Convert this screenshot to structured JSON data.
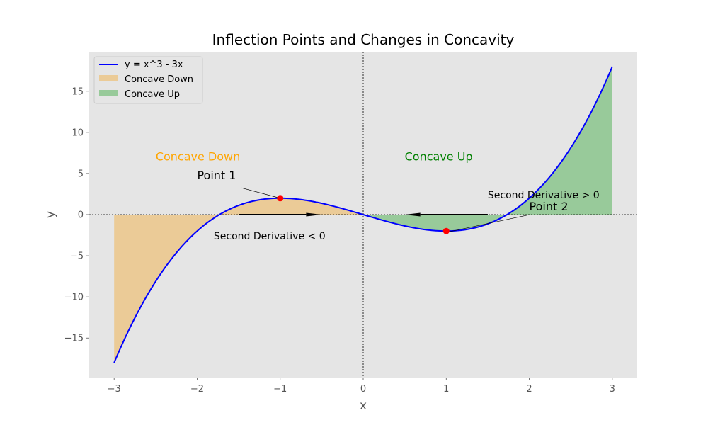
{
  "chart_data": {
    "type": "line",
    "title": "Inflection Points and Changes in Concavity",
    "xlabel": "x",
    "ylabel": "y",
    "xlim": [
      -3.3,
      3.3
    ],
    "ylim": [
      -19.8,
      19.8
    ],
    "xticks": [
      -3,
      -2,
      -1,
      0,
      1,
      2,
      3
    ],
    "xtick_labels": [
      "−3",
      "−2",
      "−1",
      "0",
      "1",
      "2",
      "3"
    ],
    "yticks": [
      -15,
      -10,
      -5,
      0,
      5,
      10,
      15
    ],
    "ytick_labels": [
      "−15",
      "−10",
      "−5",
      "0",
      "5",
      "10",
      "15"
    ],
    "grid": false,
    "legend_position": "top-left",
    "series": [
      {
        "name": "y = x^3 - 3x",
        "kind": "line",
        "color": "#0000ff",
        "x": [
          -3.0,
          -2.75,
          -2.5,
          -2.25,
          -2.0,
          -1.75,
          -1.5,
          -1.25,
          -1.0,
          -0.75,
          -0.5,
          -0.25,
          0.0,
          0.25,
          0.5,
          0.75,
          1.0,
          1.25,
          1.5,
          1.75,
          2.0,
          2.25,
          2.5,
          2.75,
          3.0
        ],
        "y": [
          -18.0,
          -12.55,
          -8.13,
          -4.64,
          -2.0,
          -0.11,
          1.13,
          1.8,
          2.0,
          1.83,
          1.38,
          0.73,
          0.0,
          -0.73,
          -1.38,
          -1.83,
          -2.0,
          -1.8,
          -1.13,
          0.11,
          2.0,
          4.64,
          8.13,
          12.55,
          18.0
        ]
      },
      {
        "name": "Concave Down",
        "kind": "fill",
        "color": "#f5a623",
        "x_range": [
          -3,
          0
        ]
      },
      {
        "name": "Concave Up",
        "kind": "fill",
        "color": "#4caf50",
        "x_range": [
          0,
          3
        ]
      }
    ],
    "inflection_points": [
      {
        "label": "Point 1",
        "x": -1,
        "y": 2,
        "label_x": -2.0,
        "label_y": 4.3
      },
      {
        "label": "Point 2",
        "x": 1,
        "y": -2,
        "label_x": 2.0,
        "label_y": 0.5
      }
    ],
    "region_labels": [
      {
        "text": "Concave Down",
        "x": -2.5,
        "y": 7,
        "color": "#ffa500"
      },
      {
        "text": "Concave Up",
        "x": 0.5,
        "y": 7,
        "color": "#008000"
      }
    ],
    "arrow_annotations": [
      {
        "text": "Second Derivative < 0",
        "text_x": -1.8,
        "text_y": -2.6,
        "from_x": -1.5,
        "from_y": 0,
        "to_x": -0.5,
        "to_y": 0
      },
      {
        "text": "Second Derivative > 0",
        "text_x": 1.5,
        "text_y": 2.4,
        "from_x": 1.5,
        "from_y": 0,
        "to_x": 0.5,
        "to_y": 0
      }
    ],
    "colors": {
      "background": "#e5e5e5",
      "curve": "#0000ff",
      "point": "#ff0000"
    }
  }
}
